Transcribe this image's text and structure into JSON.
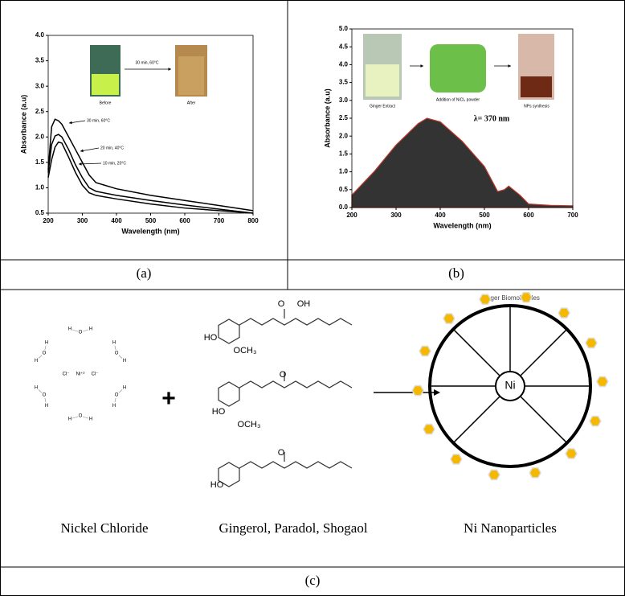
{
  "chart_data": [
    {
      "type": "line",
      "xlabel": "Wavelength (nm)",
      "ylabel": "Absorbance (a.u)",
      "x": [
        200,
        210,
        220,
        230,
        240,
        260,
        280,
        300,
        320,
        340,
        400,
        500,
        600,
        700,
        800
      ],
      "series": [
        {
          "name": "30 min, 60°C",
          "color": "#000000",
          "values": [
            1.35,
            2.2,
            2.35,
            2.32,
            2.25,
            2.0,
            1.75,
            1.5,
            1.25,
            1.1,
            0.98,
            0.85,
            0.75,
            0.65,
            0.55
          ]
        },
        {
          "name": "20 min, 40°C",
          "color": "#000000",
          "values": [
            1.3,
            1.85,
            2.02,
            2.05,
            2.0,
            1.75,
            1.45,
            1.2,
            1.0,
            0.93,
            0.85,
            0.75,
            0.66,
            0.58,
            0.5
          ]
        },
        {
          "name": "10 min, 20°C",
          "color": "#000000",
          "values": [
            1.2,
            1.55,
            1.8,
            1.9,
            1.88,
            1.6,
            1.3,
            1.05,
            0.9,
            0.85,
            0.78,
            0.68,
            0.6,
            0.55,
            0.5
          ]
        }
      ],
      "annotations": [
        "Before",
        "After",
        "30 min, 60°C"
      ],
      "xlim": [
        200,
        800
      ],
      "xticks": [
        200,
        300,
        400,
        500,
        600,
        700,
        800
      ],
      "ylim": [
        0.5,
        4
      ],
      "yticks": [
        0.5,
        {
          "value": 1,
          "label": "1.0"
        },
        1.5,
        {
          "value": 2,
          "label": "2.0"
        },
        2.5,
        {
          "value": 3,
          "label": "3.0"
        },
        3.5,
        {
          "value": 4,
          "label": "4.0"
        }
      ]
    },
    {
      "type": "area",
      "xlabel": "Wavelength (nm)",
      "ylabel": "Absorbance (a.u)",
      "x": [
        200,
        250,
        300,
        350,
        370,
        400,
        450,
        500,
        530,
        545,
        555,
        580,
        600,
        650,
        700
      ],
      "values": [
        0.35,
        1.0,
        1.75,
        2.35,
        2.5,
        2.4,
        1.85,
        1.15,
        0.45,
        0.5,
        0.6,
        0.35,
        0.1,
        0.06,
        0.05
      ],
      "color": "#333333",
      "line_color": "#c0392b",
      "annotations": [
        "Ginger Extract",
        "Addition of NiCl₂ powder",
        "NPs synthesis",
        "λ= 370 nm"
      ],
      "xlim": [
        200,
        700
      ],
      "xticks": [
        200,
        300,
        400,
        500,
        600,
        700
      ],
      "ylim": [
        0,
        5
      ],
      "yticks": [
        {
          "value": 0,
          "label": "0.0"
        },
        0.5,
        {
          "value": 1,
          "label": "1.0"
        },
        1.5,
        {
          "value": 2,
          "label": "2.0"
        },
        2.5,
        {
          "value": 3,
          "label": "3.0"
        },
        3.5,
        {
          "value": 4,
          "label": "4.0"
        },
        4.5,
        {
          "value": 5,
          "label": "5.0"
        }
      ]
    }
  ],
  "panels": {
    "a": "(a)",
    "b": "(b)",
    "c": "(c)"
  },
  "diagram": {
    "nickel_chloride": {
      "center": "Ni⁺²",
      "chlorides": [
        "Cl⁻",
        "Cl⁻"
      ],
      "waters": [
        [
          "H",
          "O",
          "H"
        ],
        [
          "H",
          "O",
          "H"
        ],
        [
          "H",
          "O",
          "H"
        ],
        [
          "H",
          "O",
          "H"
        ],
        [
          "H",
          "O",
          "H"
        ],
        [
          "H",
          "O",
          "H"
        ]
      ]
    },
    "plus": "+",
    "molecules": [
      {
        "labels": [
          "HO",
          "OCH₃",
          "O",
          "OH"
        ]
      },
      {
        "labels": [
          "HO",
          "OCH₃",
          "O"
        ]
      },
      {
        "labels": [
          "HO",
          "O"
        ]
      }
    ],
    "nanoparticle": {
      "core": "Ni",
      "shell_label": "Ginger Biomolecules"
    },
    "captions": [
      "Nickel Chloride",
      "Gingerol, Paradol, Shogaol",
      "Ni Nanoparticles"
    ]
  }
}
